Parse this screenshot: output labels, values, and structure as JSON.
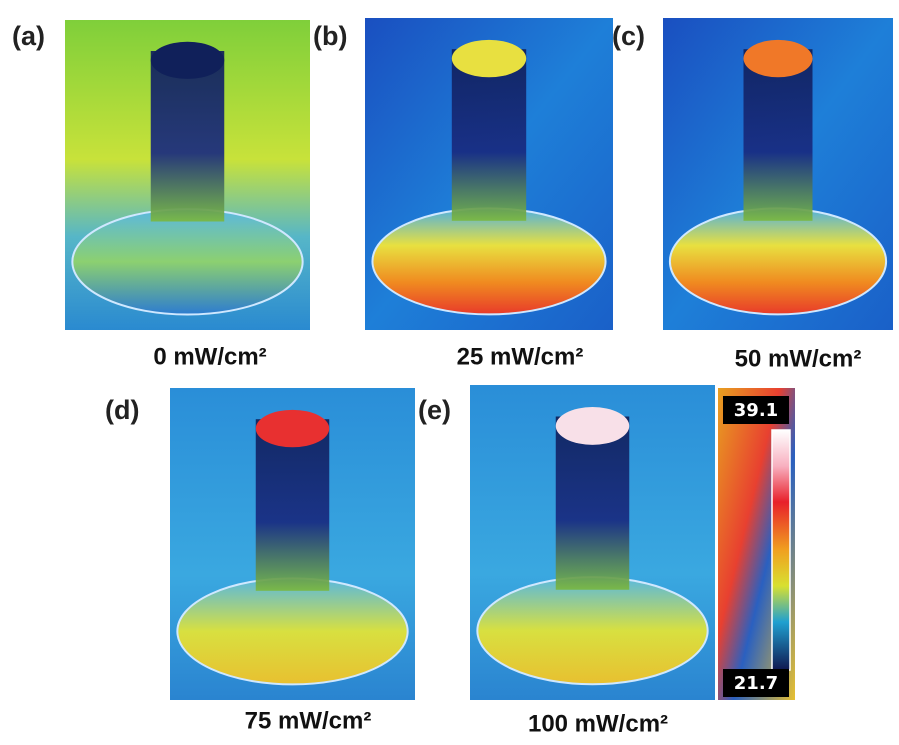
{
  "panels": [
    {
      "label": "(a)",
      "caption": "0 mW/cm²"
    },
    {
      "label": "(b)",
      "caption": "25 mW/cm²"
    },
    {
      "label": "(c)",
      "caption": "50 mW/cm²"
    },
    {
      "label": "(d)",
      "caption": "75 mW/cm²"
    },
    {
      "label": "(e)",
      "caption": "100 mW/cm²"
    }
  ],
  "colorbar": {
    "max": "39.1",
    "min": "21.7"
  }
}
